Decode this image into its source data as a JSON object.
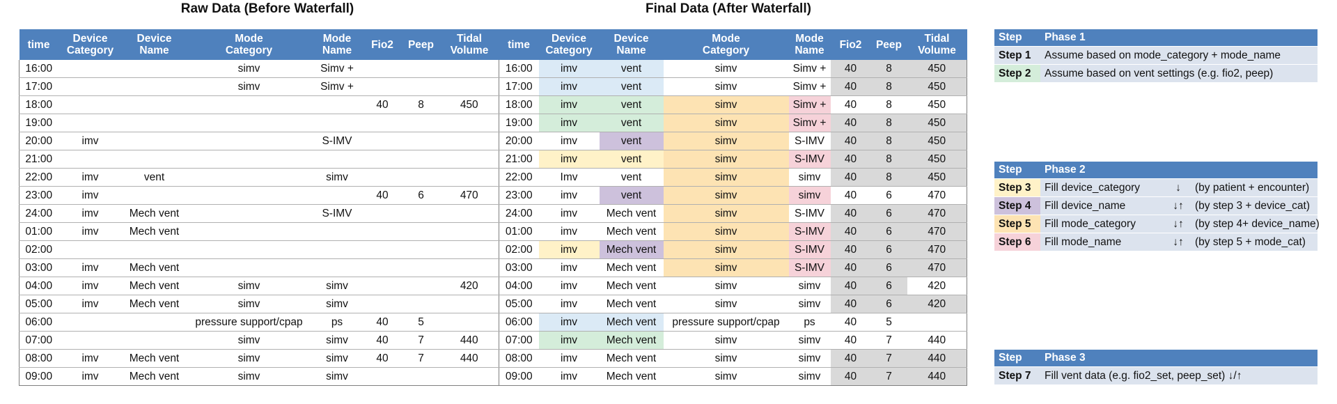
{
  "raw_title": "Raw Data (Before Waterfall)",
  "final_title": "Final Data (After Waterfall)",
  "headers": [
    "time",
    "Device\nCategory",
    "Device\nName",
    "Mode\nCategory",
    "Mode\nName",
    "Fio2",
    "Peep",
    "Tidal\nVolume"
  ],
  "raw_rows": [
    [
      "16:00",
      "",
      "",
      "simv",
      "Simv +",
      "",
      "",
      ""
    ],
    [
      "17:00",
      "",
      "",
      "simv",
      "Simv +",
      "",
      "",
      ""
    ],
    [
      "18:00",
      "",
      "",
      "",
      "",
      "40",
      "8",
      "450"
    ],
    [
      "19:00",
      "",
      "",
      "",
      "",
      "",
      "",
      ""
    ],
    [
      "20:00",
      "imv",
      "",
      "",
      "S-IMV",
      "",
      "",
      ""
    ],
    [
      "21:00",
      "",
      "",
      "",
      "",
      "",
      "",
      ""
    ],
    [
      "22:00",
      "imv",
      "vent",
      "",
      "simv",
      "",
      "",
      ""
    ],
    [
      "23:00",
      "imv",
      "",
      "",
      "",
      "40",
      "6",
      "470"
    ],
    [
      "24:00",
      "imv",
      "Mech vent",
      "",
      "S-IMV",
      "",
      "",
      ""
    ],
    [
      "01:00",
      "imv",
      "Mech vent",
      "",
      "",
      "",
      "",
      ""
    ],
    [
      "02:00",
      "",
      "",
      "",
      "",
      "",
      "",
      ""
    ],
    [
      "03:00",
      "imv",
      "Mech vent",
      "",
      "",
      "",
      "",
      ""
    ],
    [
      "04:00",
      "imv",
      "Mech vent",
      "simv",
      "simv",
      "",
      "",
      "420"
    ],
    [
      "05:00",
      "imv",
      "Mech vent",
      "simv",
      "simv",
      "",
      "",
      ""
    ],
    [
      "06:00",
      "",
      "",
      "pressure support/cpap",
      "ps",
      "40",
      "5",
      ""
    ],
    [
      "07:00",
      "",
      "",
      "simv",
      "simv",
      "40",
      "7",
      "440"
    ],
    [
      "08:00",
      "imv",
      "Mech vent",
      "simv",
      "simv",
      "40",
      "7",
      "440"
    ],
    [
      "09:00",
      "imv",
      "Mech vent",
      "simv",
      "simv",
      "",
      "",
      ""
    ]
  ],
  "final_rows": [
    [
      "16:00",
      "imv",
      "vent",
      "simv",
      "Simv +",
      "40",
      "8",
      "450"
    ],
    [
      "17:00",
      "imv",
      "vent",
      "simv",
      "Simv +",
      "40",
      "8",
      "450"
    ],
    [
      "18:00",
      "imv",
      "vent",
      "simv",
      "Simv +",
      "40",
      "8",
      "450"
    ],
    [
      "19:00",
      "imv",
      "vent",
      "simv",
      "Simv +",
      "40",
      "8",
      "450"
    ],
    [
      "20:00",
      "imv",
      "vent",
      "simv",
      "S-IMV",
      "40",
      "8",
      "450"
    ],
    [
      "21:00",
      "imv",
      "vent",
      "simv",
      "S-IMV",
      "40",
      "8",
      "450"
    ],
    [
      "22:00",
      "Imv",
      "vent",
      "simv",
      "simv",
      "40",
      "8",
      "450"
    ],
    [
      "23:00",
      "imv",
      "vent",
      "simv",
      "simv",
      "40",
      "6",
      "470"
    ],
    [
      "24:00",
      "imv",
      "Mech vent",
      "simv",
      "S-IMV",
      "40",
      "6",
      "470"
    ],
    [
      "01:00",
      "imv",
      "Mech vent",
      "simv",
      "S-IMV",
      "40",
      "6",
      "470"
    ],
    [
      "02:00",
      "imv",
      "Mech vent",
      "simv",
      "S-IMV",
      "40",
      "6",
      "470"
    ],
    [
      "03:00",
      "imv",
      "Mech vent",
      "simv",
      "S-IMV",
      "40",
      "6",
      "470"
    ],
    [
      "04:00",
      "imv",
      "Mech vent",
      "simv",
      "simv",
      "40",
      "6",
      "420"
    ],
    [
      "05:00",
      "imv",
      "Mech vent",
      "simv",
      "simv",
      "40",
      "6",
      "420"
    ],
    [
      "06:00",
      "imv",
      "Mech vent",
      "pressure support/cpap",
      "ps",
      "40",
      "5",
      ""
    ],
    [
      "07:00",
      "imv",
      "Mech vent",
      "simv",
      "simv",
      "40",
      "7",
      "440"
    ],
    [
      "08:00",
      "imv",
      "Mech vent",
      "simv",
      "simv",
      "40",
      "7",
      "440"
    ],
    [
      "09:00",
      "imv",
      "Mech vent",
      "simv",
      "simv",
      "40",
      "7",
      "440"
    ]
  ],
  "final_colors": [
    [
      "",
      "blue",
      "blue",
      "",
      "",
      "gray",
      "gray",
      "gray"
    ],
    [
      "",
      "blue",
      "blue",
      "",
      "",
      "gray",
      "gray",
      "gray"
    ],
    [
      "",
      "green",
      "green",
      "orange",
      "pink",
      "",
      "",
      ""
    ],
    [
      "",
      "green",
      "green",
      "orange",
      "pink",
      "gray",
      "gray",
      "gray"
    ],
    [
      "",
      "",
      "purple",
      "orange",
      "",
      "gray",
      "gray",
      "gray"
    ],
    [
      "",
      "yellow",
      "yellow",
      "orange",
      "pink",
      "gray",
      "gray",
      "gray"
    ],
    [
      "",
      "",
      "",
      "orange",
      "",
      "gray",
      "gray",
      "gray"
    ],
    [
      "",
      "",
      "purple",
      "orange",
      "pink",
      "",
      "",
      ""
    ],
    [
      "",
      "",
      "",
      "orange",
      "",
      "gray",
      "gray",
      "gray"
    ],
    [
      "",
      "",
      "",
      "orange",
      "pink",
      "gray",
      "gray",
      "gray"
    ],
    [
      "",
      "yellow",
      "purple",
      "orange",
      "pink",
      "gray",
      "gray",
      "gray"
    ],
    [
      "",
      "",
      "",
      "orange",
      "pink",
      "gray",
      "gray",
      "gray"
    ],
    [
      "",
      "",
      "",
      "",
      "",
      "gray",
      "gray",
      ""
    ],
    [
      "",
      "",
      "",
      "",
      "",
      "gray",
      "gray",
      "gray"
    ],
    [
      "",
      "blue",
      "blue",
      "",
      "",
      "",
      "",
      ""
    ],
    [
      "",
      "green",
      "green",
      "",
      "",
      "",
      "",
      ""
    ],
    [
      "",
      "",
      "",
      "",
      "",
      "gray",
      "gray",
      "gray"
    ],
    [
      "",
      "",
      "",
      "",
      "",
      "gray",
      "gray",
      "gray"
    ]
  ],
  "phases": [
    {
      "header_step": "Step",
      "header_phase": "Phase 1",
      "steps": [
        {
          "label": "Step 1",
          "color": "",
          "text": "Assume based on mode_category + mode_name",
          "arrow": "",
          "note": ""
        },
        {
          "label": "Step 2",
          "color": "green",
          "text": "Assume based on vent settings (e.g. fio2, peep)",
          "arrow": "",
          "note": ""
        }
      ]
    },
    {
      "header_step": "Step",
      "header_phase": "Phase 2",
      "steps": [
        {
          "label": "Step 3",
          "color": "yellow",
          "text": "Fill device_category",
          "arrow": "↓",
          "note": "(by patient + encounter)"
        },
        {
          "label": "Step 4",
          "color": "purple",
          "text": "Fill device_name",
          "arrow": "↓↑",
          "note": "(by step 3 + device_cat)"
        },
        {
          "label": "Step 5",
          "color": "orange",
          "text": "Fill mode_category",
          "arrow": "↓↑",
          "note": "(by step 4+ device_name)"
        },
        {
          "label": "Step 6",
          "color": "pink",
          "text": "Fill mode_name",
          "arrow": "↓↑",
          "note": "(by step 5 + mode_cat)"
        }
      ]
    },
    {
      "header_step": "Step",
      "header_phase": "Phase 3",
      "steps": [
        {
          "label": "Step 7",
          "color": "",
          "text": "Fill vent data (e.g. fio2_set, peep_set) ↓/↑",
          "arrow": "",
          "note": ""
        }
      ]
    }
  ]
}
